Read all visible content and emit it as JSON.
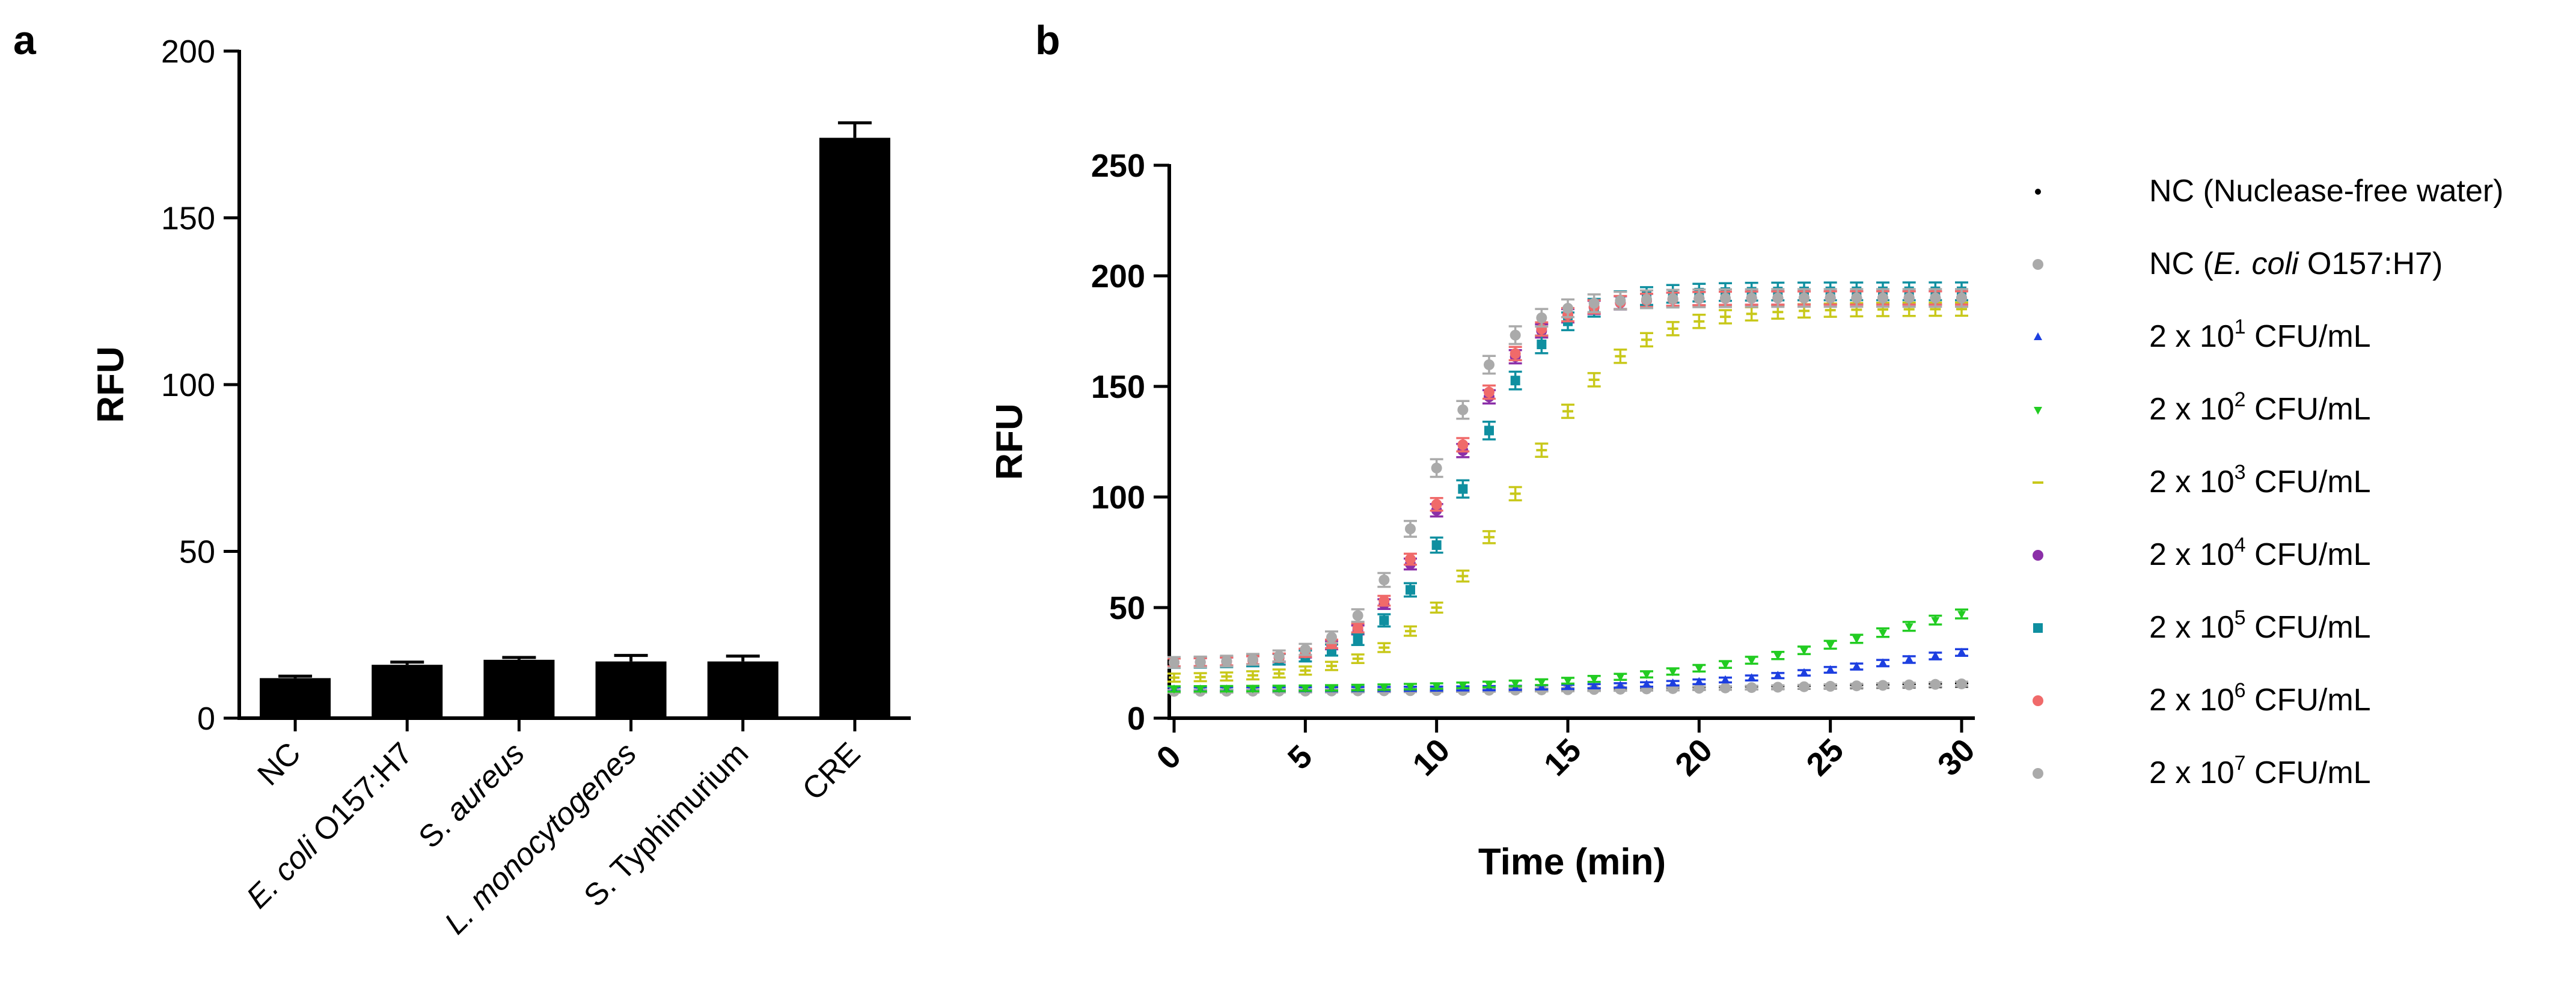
{
  "chart_data": [
    {
      "panel": "a",
      "type": "bar",
      "ylabel": "RFU",
      "ylim": [
        0,
        200
      ],
      "yticks": [
        0,
        50,
        100,
        150,
        200
      ],
      "categories": [
        {
          "label": "NC",
          "parts": [
            {
              "t": "NC",
              "i": false
            }
          ]
        },
        {
          "label": "E. coli O157:H7",
          "parts": [
            {
              "t": "E. coli",
              "i": true
            },
            {
              "t": " O157:H7",
              "i": false
            }
          ]
        },
        {
          "label": "S. aureus",
          "parts": [
            {
              "t": "S. ",
              "i": false
            },
            {
              "t": "aureus",
              "i": true
            }
          ]
        },
        {
          "label": "L. monocytogenes",
          "parts": [
            {
              "t": "L. monocytogenes",
              "i": true
            }
          ]
        },
        {
          "label": "S. Typhimurium",
          "parts": [
            {
              "t": "S. Typhimurium",
              "i": false
            }
          ]
        },
        {
          "label": "CRE",
          "parts": [
            {
              "t": "CRE",
              "i": false
            }
          ]
        }
      ],
      "values": [
        12,
        16,
        17.5,
        17,
        17,
        174
      ],
      "errors": [
        0.6,
        0.8,
        0.7,
        1.8,
        1.6,
        4.5
      ],
      "color": "#000000"
    },
    {
      "panel": "b",
      "type": "scatter",
      "xlabel": "Time (min)",
      "ylabel": "RFU",
      "xlim": [
        0,
        30
      ],
      "ylim": [
        0,
        250
      ],
      "xticks": [
        0,
        5,
        10,
        15,
        20,
        25,
        30
      ],
      "yticks": [
        0,
        50,
        100,
        150,
        200,
        250
      ],
      "series": [
        {
          "name": "NC (Nuclease-free water)",
          "legend": {
            "pre": "NC (Nuclease-free water)"
          },
          "color": "#000000",
          "marker": "dot",
          "model": {
            "base": 12,
            "top": 18,
            "mid": 30,
            "k": 0.06
          },
          "err": 0.8
        },
        {
          "name": "NC (E. coli O157:H7)",
          "legend": {
            "pre": "NC (",
            "it": "E. coli",
            "post": " O157:H7)"
          },
          "color": "#aaaaaa",
          "marker": "circle",
          "model": {
            "base": 12,
            "top": 19,
            "mid": 30,
            "k": 0.065
          },
          "err": 1.0
        },
        {
          "name": "2 x 10^1 CFU/mL",
          "legend": {
            "pre": "2 x 10",
            "sup": "1",
            "post": " CFU/mL"
          },
          "color": "#1d3fe0",
          "marker": "tri",
          "model": {
            "base": 13,
            "top": 40,
            "mid": 28,
            "k": 0.12
          },
          "err": 1.5
        },
        {
          "name": "2 x 10^2 CFU/mL",
          "legend": {
            "pre": "2 x 10",
            "sup": "2",
            "post": " CFU/mL"
          },
          "color": "#22cc22",
          "marker": "tri-down",
          "model": {
            "base": 13,
            "top": 70,
            "mid": 28,
            "k": 0.1
          },
          "err": 2.0
        },
        {
          "name": "2 x 10^3 CFU/mL",
          "legend": {
            "pre": "2 x 10",
            "sup": "3",
            "post": " CFU/mL"
          },
          "color": "#c8c81a",
          "marker": "dash",
          "model": {
            "base": 18,
            "top": 185,
            "mid": 13,
            "k": 0.24
          },
          "err": 3.0
        },
        {
          "name": "2 x 10^4 CFU/mL",
          "legend": {
            "pre": "2 x 10",
            "sup": "4",
            "post": " CFU/mL"
          },
          "color": "#8b2fa8",
          "marker": "circle",
          "model": {
            "base": 25,
            "top": 190,
            "mid": 10.5,
            "k": 0.33
          },
          "err": 3.0
        },
        {
          "name": "2 x 10^5 CFU/mL",
          "legend": {
            "pre": "2 x 10",
            "sup": "5",
            "post": " CFU/mL"
          },
          "color": "#0f8fa0",
          "marker": "square",
          "model": {
            "base": 25,
            "top": 193,
            "mid": 11.2,
            "k": 0.32
          },
          "err": 4.0
        },
        {
          "name": "2 x 10^6 CFU/mL",
          "legend": {
            "pre": "2 x 10",
            "sup": "6",
            "post": " CFU/mL"
          },
          "color": "#f06a6a",
          "marker": "circle",
          "model": {
            "base": 25,
            "top": 190,
            "mid": 10.4,
            "k": 0.33
          },
          "err": 3.0
        },
        {
          "name": "2 x 10^7 CFU/mL",
          "legend": {
            "pre": "2 x 10",
            "sup": "7",
            "post": " CFU/mL"
          },
          "color": "#aaaaaa",
          "marker": "circle",
          "model": {
            "base": 25,
            "top": 190,
            "mid": 9.8,
            "k": 0.34
          },
          "err": 4.0
        }
      ]
    }
  ]
}
